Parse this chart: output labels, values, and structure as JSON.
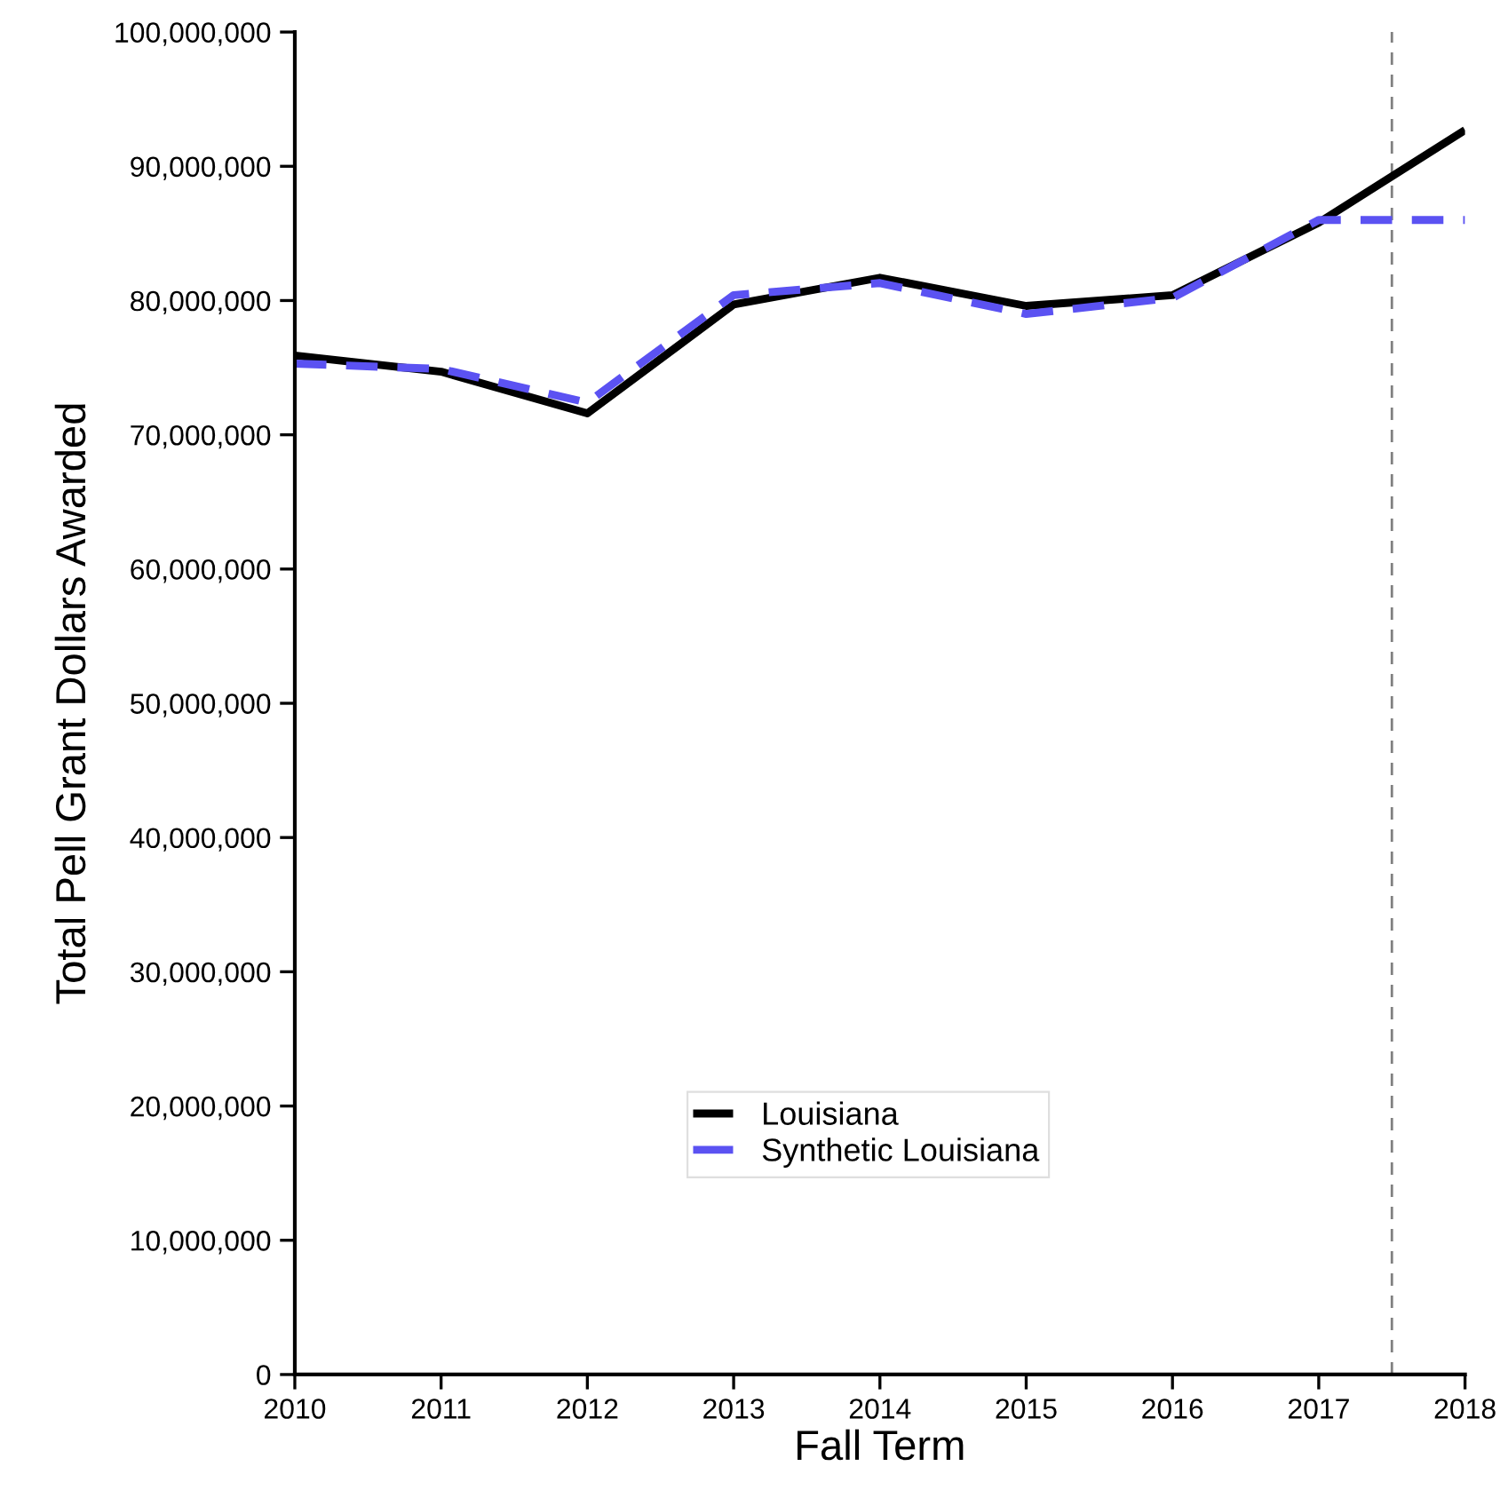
{
  "chart_data": {
    "type": "line",
    "xlabel": "Fall Term",
    "ylabel": "Total Pell Grant Dollars Awarded",
    "x": [
      2010,
      2011,
      2012,
      2013,
      2014,
      2015,
      2016,
      2017,
      2018
    ],
    "series": [
      {
        "name": "Louisiana",
        "color": "#000000",
        "line_style": "solid",
        "values": [
          75900000,
          74700000,
          71600000,
          79700000,
          81700000,
          79600000,
          80400000,
          85800000,
          92700000
        ]
      },
      {
        "name": "Synthetic Louisiana",
        "color": "#5b52f2",
        "line_style": "dashed",
        "values": [
          75300000,
          74900000,
          72400000,
          80400000,
          81300000,
          79000000,
          80200000,
          86000000,
          86000000
        ]
      }
    ],
    "xlim": [
      2010,
      2018
    ],
    "xticks": [
      2010,
      2011,
      2012,
      2013,
      2014,
      2015,
      2016,
      2017,
      2018
    ],
    "ylim": [
      0,
      100000000
    ],
    "yticks": [
      {
        "value": 0,
        "label": "0"
      },
      {
        "value": 10000000,
        "label": "10,000,000"
      },
      {
        "value": 20000000,
        "label": "20,000,000"
      },
      {
        "value": 30000000,
        "label": "30,000,000"
      },
      {
        "value": 40000000,
        "label": "40,000,000"
      },
      {
        "value": 50000000,
        "label": "50,000,000"
      },
      {
        "value": 60000000,
        "label": "60,000,000"
      },
      {
        "value": 70000000,
        "label": "70,000,000"
      },
      {
        "value": 80000000,
        "label": "80,000,000"
      },
      {
        "value": 90000000,
        "label": "90,000,000"
      },
      {
        "value": 100000000,
        "label": "100,000,000"
      }
    ],
    "ref_lines": [
      {
        "axis": "x",
        "value": 2017.5,
        "color": "#808080",
        "line_style": "dashed"
      }
    ],
    "grid": false,
    "legend": "bottom",
    "marker": "none"
  }
}
